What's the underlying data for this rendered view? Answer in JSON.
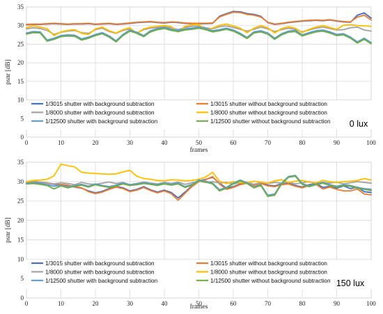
{
  "chart_data": [
    {
      "type": "line",
      "title": "",
      "xlabel": "frames",
      "ylabel": "psnr [dB]",
      "xlim": [
        0,
        100
      ],
      "ylim": [
        0,
        35
      ],
      "x_ticks": [
        0,
        10,
        20,
        30,
        40,
        50,
        60,
        70,
        80,
        90,
        100
      ],
      "y_ticks": [
        0,
        5,
        10,
        15,
        20,
        25,
        30,
        35
      ],
      "grid": true,
      "annotation": "0 lux",
      "legend_position": "bottom",
      "x": [
        0,
        2,
        4,
        6,
        8,
        10,
        12,
        14,
        16,
        18,
        20,
        22,
        24,
        26,
        28,
        30,
        32,
        34,
        36,
        38,
        40,
        42,
        44,
        46,
        48,
        50,
        52,
        54,
        56,
        58,
        60,
        62,
        64,
        66,
        68,
        70,
        72,
        74,
        76,
        78,
        80,
        82,
        84,
        86,
        88,
        90,
        92,
        94,
        96,
        98,
        100
      ],
      "series": [
        {
          "name": "1/3015 shutter with background subtraction",
          "color": "#4472C4",
          "values": [
            30.2,
            30.3,
            30.3,
            30.4,
            30.5,
            30.4,
            30.3,
            30.4,
            30.4,
            30.5,
            30.3,
            30.4,
            30.5,
            30.3,
            30.4,
            30.6,
            30.8,
            30.9,
            31.0,
            30.8,
            30.7,
            30.9,
            30.8,
            30.6,
            30.5,
            30.5,
            30.5,
            30.6,
            32.5,
            33.2,
            33.8,
            33.7,
            33.2,
            33.0,
            32.5,
            30.8,
            30.3,
            30.5,
            30.8,
            31.0,
            31.2,
            31.3,
            31.4,
            31.3,
            31.5,
            31.2,
            31.0,
            30.9,
            32.8,
            33.4,
            32.0
          ]
        },
        {
          "name": "1/3015 shutter without background subtraction",
          "color": "#ED7D31",
          "values": [
            30.3,
            30.4,
            30.4,
            30.5,
            30.6,
            30.5,
            30.4,
            30.5,
            30.5,
            30.6,
            30.4,
            30.5,
            30.6,
            30.4,
            30.5,
            30.7,
            30.9,
            31.0,
            31.1,
            30.9,
            30.8,
            31.0,
            30.9,
            30.7,
            30.6,
            30.6,
            30.6,
            30.7,
            32.3,
            33.0,
            33.6,
            33.5,
            33.0,
            32.8,
            32.3,
            30.9,
            30.4,
            30.6,
            30.9,
            31.1,
            31.3,
            31.4,
            31.5,
            31.4,
            31.6,
            31.3,
            31.1,
            31.0,
            32.3,
            32.8,
            31.5
          ]
        },
        {
          "name": "1/8000 shutter with background subtraction",
          "color": "#A5A5A5",
          "values": [
            29.1,
            29.4,
            29.2,
            28.7,
            27.6,
            28.2,
            28.5,
            28.7,
            28.1,
            27.9,
            28.9,
            29.3,
            28.4,
            27.9,
            28.7,
            29.1,
            28.0,
            28.9,
            29.3,
            29.5,
            29.7,
            29.4,
            28.9,
            29.5,
            29.8,
            29.9,
            29.4,
            29.1,
            29.7,
            29.9,
            29.5,
            29.0,
            28.5,
            29.0,
            29.6,
            29.1,
            28.4,
            28.9,
            29.3,
            29.0,
            28.3,
            28.8,
            29.3,
            29.6,
            29.2,
            28.8,
            28.9,
            29.4,
            29.6,
            28.8,
            28.5
          ]
        },
        {
          "name": "1/8000 shutter without background subtraction",
          "color": "#FFC000",
          "values": [
            29.5,
            29.9,
            29.6,
            29.2,
            27.3,
            28.3,
            28.7,
            28.9,
            27.9,
            27.6,
            29.1,
            29.6,
            28.6,
            28.0,
            28.9,
            29.4,
            27.9,
            29.1,
            29.6,
            29.8,
            30.0,
            29.7,
            28.3,
            29.8,
            30.2,
            30.3,
            28.8,
            29.3,
            30.1,
            30.4,
            29.9,
            29.3,
            28.1,
            29.3,
            30.0,
            29.4,
            28.0,
            29.2,
            29.7,
            29.3,
            28.1,
            29.0,
            29.6,
            30.0,
            29.5,
            29.0,
            30.1,
            30.2,
            30.0,
            29.9,
            29.8
          ]
        },
        {
          "name": "1/12500 shutter with background subtraction",
          "color": "#5B9BD5",
          "values": [
            28.0,
            28.4,
            28.3,
            26.1,
            26.6,
            27.3,
            27.5,
            27.4,
            26.4,
            26.9,
            27.6,
            28.1,
            27.2,
            25.9,
            27.6,
            28.8,
            28.2,
            27.3,
            28.6,
            29.2,
            29.5,
            29.0,
            28.7,
            29.1,
            29.3,
            29.6,
            29.2,
            28.6,
            28.9,
            29.3,
            28.8,
            27.9,
            26.8,
            28.3,
            28.6,
            28.0,
            26.6,
            27.8,
            28.5,
            28.7,
            27.5,
            28.1,
            28.6,
            28.8,
            28.3,
            27.6,
            27.8,
            26.9,
            25.6,
            26.6,
            25.4
          ]
        },
        {
          "name": "1/12500 shutter without background subtraction",
          "color": "#70AD47",
          "values": [
            27.7,
            28.1,
            28.0,
            25.8,
            26.3,
            27.0,
            27.2,
            27.1,
            26.1,
            26.6,
            27.3,
            27.8,
            26.9,
            25.6,
            27.3,
            28.5,
            27.9,
            27.0,
            28.3,
            28.9,
            29.2,
            28.7,
            28.4,
            28.8,
            29.0,
            29.3,
            28.9,
            28.3,
            28.6,
            29.0,
            28.5,
            27.6,
            26.5,
            28.0,
            28.3,
            27.7,
            26.3,
            27.5,
            28.2,
            28.4,
            27.2,
            27.8,
            28.3,
            28.5,
            28.0,
            27.3,
            27.5,
            26.6,
            25.3,
            26.3,
            25.1
          ]
        }
      ]
    },
    {
      "type": "line",
      "title": "",
      "xlabel": "frames",
      "ylabel": "psnr [dB]",
      "xlim": [
        0,
        100
      ],
      "ylim": [
        0,
        35
      ],
      "x_ticks": [
        0,
        10,
        20,
        30,
        40,
        50,
        60,
        70,
        80,
        90,
        100
      ],
      "y_ticks": [
        0,
        5,
        10,
        15,
        20,
        25,
        30,
        35
      ],
      "grid": true,
      "annotation": "150 lux",
      "legend_position": "bottom",
      "x": [
        0,
        2,
        4,
        6,
        8,
        10,
        12,
        14,
        16,
        18,
        20,
        22,
        24,
        26,
        28,
        30,
        32,
        34,
        36,
        38,
        40,
        42,
        44,
        46,
        48,
        50,
        52,
        54,
        56,
        58,
        60,
        62,
        64,
        66,
        68,
        70,
        72,
        74,
        76,
        78,
        80,
        82,
        84,
        86,
        88,
        90,
        92,
        94,
        96,
        98,
        100
      ],
      "series": [
        {
          "name": "1/3015 shutter with background subtraction",
          "color": "#4472C4",
          "values": [
            29.8,
            29.9,
            29.8,
            29.6,
            29.3,
            29.2,
            29.0,
            28.6,
            28.3,
            27.6,
            27.1,
            27.5,
            28.2,
            28.8,
            28.4,
            27.6,
            28.0,
            28.7,
            27.9,
            27.3,
            27.8,
            27.2,
            25.8,
            27.3,
            28.9,
            30.2,
            30.6,
            31.1,
            29.6,
            28.3,
            28.7,
            29.4,
            29.8,
            29.2,
            29.6,
            29.1,
            28.9,
            29.4,
            29.6,
            29.0,
            28.6,
            29.2,
            29.5,
            28.5,
            28.8,
            28.3,
            28.9,
            28.2,
            28.6,
            27.4,
            27.2
          ]
        },
        {
          "name": "1/3015 shutter without background subtraction",
          "color": "#ED7D31",
          "values": [
            29.9,
            30.0,
            29.9,
            29.7,
            29.4,
            29.3,
            29.1,
            28.7,
            28.4,
            27.4,
            26.9,
            27.3,
            28.0,
            28.6,
            28.2,
            27.4,
            27.8,
            28.5,
            27.7,
            27.1,
            27.6,
            26.9,
            25.2,
            27.0,
            28.7,
            30.0,
            30.5,
            31.3,
            29.4,
            28.0,
            28.5,
            29.2,
            29.6,
            29.0,
            29.5,
            28.9,
            28.7,
            29.2,
            29.4,
            28.8,
            28.4,
            29.0,
            29.3,
            28.1,
            28.6,
            28.0,
            27.6,
            27.6,
            28.1,
            26.8,
            26.6
          ]
        },
        {
          "name": "1/8000 shutter with background subtraction",
          "color": "#A5A5A5",
          "values": [
            30.0,
            30.1,
            29.9,
            29.6,
            29.4,
            29.7,
            29.5,
            29.2,
            29.8,
            29.4,
            29.3,
            29.6,
            29.9,
            29.5,
            29.8,
            29.2,
            29.5,
            29.9,
            29.6,
            29.4,
            29.8,
            29.5,
            29.9,
            29.3,
            29.7,
            30.1,
            29.8,
            30.0,
            29.6,
            29.8,
            29.4,
            29.7,
            29.9,
            29.3,
            29.8,
            29.5,
            29.8,
            29.6,
            29.9,
            29.4,
            29.7,
            30.0,
            29.5,
            29.8,
            29.6,
            29.9,
            29.4,
            29.7,
            30.0,
            29.8,
            29.6
          ]
        },
        {
          "name": "1/8000 shutter without background subtraction",
          "color": "#FFC000",
          "values": [
            30.0,
            30.3,
            30.4,
            30.6,
            31.5,
            34.5,
            34.1,
            33.8,
            32.4,
            32.2,
            32.1,
            32.0,
            31.9,
            32.0,
            32.5,
            32.9,
            31.4,
            30.8,
            30.6,
            30.3,
            30.2,
            30.5,
            30.4,
            30.2,
            30.3,
            30.6,
            31.2,
            32.4,
            30.1,
            29.5,
            30.0,
            29.7,
            29.8,
            30.1,
            29.9,
            29.6,
            30.2,
            30.5,
            29.8,
            30.1,
            30.3,
            29.9,
            29.7,
            30.3,
            30.0,
            29.8,
            30.0,
            30.1,
            30.3,
            30.8,
            30.4
          ]
        },
        {
          "name": "1/12500 shutter with background subtraction",
          "color": "#5B9BD5",
          "values": [
            29.6,
            29.7,
            29.5,
            29.2,
            28.8,
            29.1,
            28.6,
            29.0,
            29.3,
            28.8,
            29.4,
            29.0,
            28.7,
            29.1,
            29.6,
            29.2,
            29.4,
            29.7,
            29.5,
            29.2,
            29.6,
            29.3,
            29.6,
            28.7,
            29.3,
            30.4,
            30.1,
            29.6,
            27.9,
            28.5,
            29.6,
            30.4,
            29.7,
            28.6,
            29.2,
            26.5,
            26.8,
            29.6,
            31.3,
            31.6,
            29.5,
            28.9,
            29.4,
            29.8,
            29.2,
            28.8,
            29.2,
            29.0,
            28.5,
            28.2,
            28.0
          ]
        },
        {
          "name": "1/12500 shutter without background subtraction",
          "color": "#70AD47",
          "values": [
            29.4,
            29.5,
            29.3,
            29.0,
            28.1,
            28.9,
            28.4,
            28.8,
            29.1,
            28.6,
            29.2,
            28.8,
            28.5,
            28.9,
            29.4,
            29.0,
            29.2,
            29.5,
            29.3,
            29.0,
            29.4,
            29.1,
            29.4,
            28.5,
            29.1,
            30.2,
            29.9,
            29.4,
            27.6,
            28.3,
            29.4,
            30.2,
            29.5,
            28.4,
            29.0,
            26.2,
            26.5,
            29.4,
            31.1,
            31.4,
            29.3,
            28.7,
            29.2,
            29.6,
            29.0,
            28.6,
            29.0,
            28.8,
            28.3,
            28.0,
            27.7
          ]
        }
      ]
    }
  ]
}
